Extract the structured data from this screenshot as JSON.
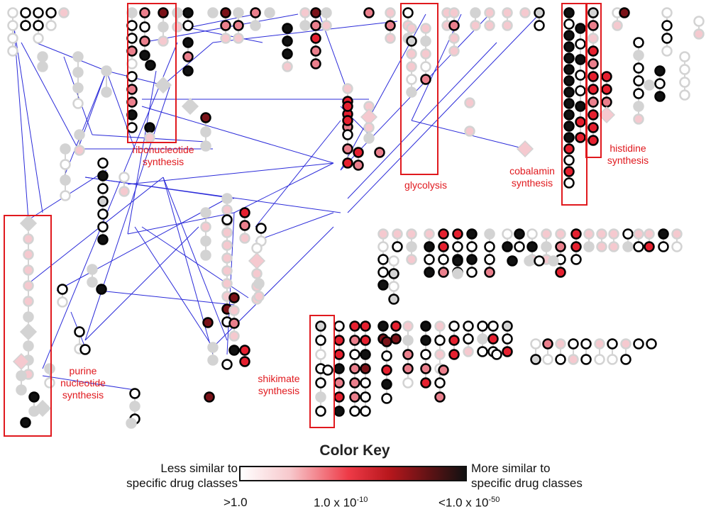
{
  "pathways": [
    {
      "id": "ribonucleotide",
      "lines": [
        "ribonucleotide",
        "synthesis"
      ]
    },
    {
      "id": "glycolysis",
      "lines": [
        "glycolysis"
      ]
    },
    {
      "id": "cobalamin",
      "lines": [
        "cobalamin",
        "synthesis"
      ]
    },
    {
      "id": "histidine",
      "lines": [
        "histidine",
        "synthesis"
      ]
    },
    {
      "id": "purine",
      "lines": [
        "purine",
        "nucleotide",
        "synthesis"
      ]
    },
    {
      "id": "shikimate",
      "lines": [
        "shikimate",
        "synthesis"
      ]
    }
  ],
  "color_key": {
    "title": "Color Key",
    "left_label_1": "Less similar to",
    "left_label_2": "specific drug classes",
    "right_label_1": "More similar to",
    "right_label_2": "specific drug classes",
    "tick_1": ">1.0",
    "tick_2_base": "1.0 x 10",
    "tick_2_exp": "-10",
    "tick_3_base": "<1.0 x 10",
    "tick_3_exp": "-50"
  },
  "colors": {
    "edge": "#2b2bd9",
    "highlight_box": "#e0191e",
    "node_gray": "#d3d3d3",
    "node_light_pink": "#f5c9cf",
    "node_pink": "#ea7f8c",
    "node_red": "#e5202f",
    "node_dark_red": "#7a1218",
    "node_black": "#111111"
  }
}
